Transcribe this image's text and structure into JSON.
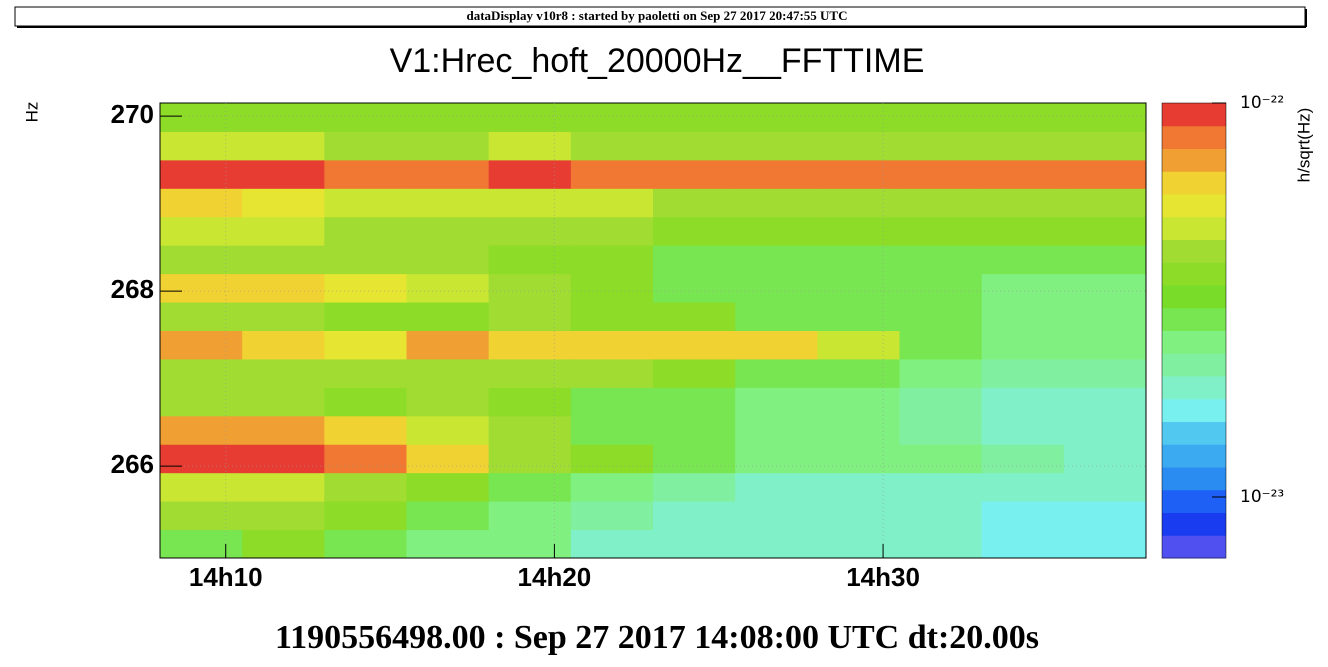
{
  "chart_data": {
    "type": "heatmap",
    "header": "dataDisplay v10r8 : started by paoletti on Sep 27 2017 20:47:55 UTC",
    "title": "V1:Hrec_hoft_20000Hz__FFTTIME",
    "y_label": "Hz",
    "z_label": "h/sqrt(Hz)",
    "x_label": "1190556498.00 : Sep 27 2017 14:08:00 UTC dt:20.00s",
    "xlim": [
      8,
      38
    ],
    "xticks": [
      {
        "value": 10,
        "label": "14h10"
      },
      {
        "value": 20,
        "label": "14h20"
      },
      {
        "value": 30,
        "label": "14h30"
      }
    ],
    "ylim": [
      264.95,
      270.15
    ],
    "yticks": [
      266,
      268,
      270
    ],
    "grid": true,
    "zlim": [
      7e-24,
      1e-22
    ],
    "zticks": [
      {
        "value": 1e-22,
        "label": "10⁻²²"
      },
      {
        "value": 1e-23,
        "label": "10⁻²³"
      }
    ],
    "zscale": "log",
    "colors": [
      "#5050f0",
      "#1a3cf0",
      "#1e5ff5",
      "#2a8cf0",
      "#3caaf0",
      "#50c8f0",
      "#78f0f0",
      "#80f0c8",
      "#80f0a0",
      "#80f080",
      "#78e650",
      "#78dc28",
      "#8cdc28",
      "#a0dc32",
      "#c8e632",
      "#e6e632",
      "#f0d232",
      "#f0a032",
      "#f07832",
      "#e63c32"
    ],
    "x_bins": [
      8,
      10.5,
      13,
      15.5,
      18,
      20.5,
      23,
      25.5,
      28,
      30.5,
      33,
      35.5,
      38
    ],
    "y_bins": [
      264.95,
      265.275,
      265.6,
      265.925,
      266.25,
      266.575,
      266.9,
      267.225,
      267.55,
      267.875,
      268.2,
      268.525,
      268.85,
      269.175,
      269.5,
      269.825,
      270.15
    ],
    "z": [
      [
        3e-23,
        3.5e-23,
        3e-23,
        2.5e-23,
        2.5e-23,
        2e-23,
        2e-23,
        1.8e-23,
        1.8e-23,
        1.8e-23,
        1.6e-23,
        1.6e-23
      ],
      [
        4e-23,
        4e-23,
        3.5e-23,
        3e-23,
        2.5e-23,
        2.2e-23,
        2e-23,
        1.8e-23,
        2e-23,
        1.8e-23,
        1.6e-23,
        1.6e-23
      ],
      [
        5e-23,
        5e-23,
        4.5e-23,
        3.5e-23,
        3e-23,
        2.5e-23,
        2.2e-23,
        2e-23,
        2e-23,
        2e-23,
        1.8e-23,
        1.8e-23
      ],
      [
        9e-23,
        9e-23,
        8.5e-23,
        6e-23,
        4.5e-23,
        3.5e-23,
        3e-23,
        2.5e-23,
        2.5e-23,
        2.5e-23,
        2.2e-23,
        2e-23
      ],
      [
        7e-23,
        7e-23,
        6e-23,
        5e-23,
        4e-23,
        3e-23,
        2.8e-23,
        2.5e-23,
        2.5e-23,
        2.2e-23,
        2e-23,
        2e-23
      ],
      [
        4e-23,
        4e-23,
        3.5e-23,
        4e-23,
        3.5e-23,
        3e-23,
        2.8e-23,
        2.5e-23,
        2.5e-23,
        2.2e-23,
        2e-23,
        2e-23
      ],
      [
        4.5e-23,
        4e-23,
        4e-23,
        4e-23,
        4.5e-23,
        4e-23,
        3.5e-23,
        3e-23,
        3e-23,
        2.5e-23,
        2.2e-23,
        2.2e-23
      ],
      [
        7e-23,
        6.5e-23,
        5.5e-23,
        7e-23,
        6e-23,
        6.5e-23,
        6e-23,
        6e-23,
        5e-23,
        3e-23,
        2.5e-23,
        2.5e-23
      ],
      [
        4e-23,
        4e-23,
        3.5e-23,
        3.5e-23,
        4e-23,
        3.5e-23,
        3.5e-23,
        3e-23,
        3e-23,
        2.8e-23,
        2.5e-23,
        2.5e-23
      ],
      [
        6.5e-23,
        6e-23,
        5.5e-23,
        5e-23,
        4e-23,
        3.5e-23,
        3e-23,
        3e-23,
        2.8e-23,
        2.8e-23,
        2.5e-23,
        2.5e-23
      ],
      [
        4.5e-23,
        4.5e-23,
        4e-23,
        4e-23,
        3.5e-23,
        3.5e-23,
        3e-23,
        3e-23,
        3e-23,
        3e-23,
        2.8e-23,
        2.8e-23
      ],
      [
        5e-23,
        5e-23,
        4.5e-23,
        4.5e-23,
        4e-23,
        4e-23,
        3.5e-23,
        3.5e-23,
        3.5e-23,
        3.5e-23,
        3.5e-23,
        3.5e-23
      ],
      [
        6e-23,
        5.5e-23,
        5e-23,
        5e-23,
        5e-23,
        5e-23,
        4.5e-23,
        4.5e-23,
        4.5e-23,
        4.5e-23,
        4.5e-23,
        4.5e-23
      ],
      [
        9e-23,
        9e-23,
        8.5e-23,
        8.5e-23,
        9e-23,
        8.5e-23,
        8e-23,
        8e-23,
        8e-23,
        8e-23,
        8.5e-23,
        8.5e-23
      ],
      [
        5e-23,
        5e-23,
        4.5e-23,
        4.5e-23,
        5e-23,
        4.5e-23,
        4.5e-23,
        4.5e-23,
        4.5e-23,
        4.5e-23,
        4.5e-23,
        4.5e-23
      ],
      [
        3.5e-23,
        3.5e-23,
        3.5e-23,
        3.5e-23,
        3.5e-23,
        3.5e-23,
        3.5e-23,
        3.5e-23,
        3.5e-23,
        3.5e-23,
        3.5e-23,
        3.5e-23
      ]
    ]
  }
}
